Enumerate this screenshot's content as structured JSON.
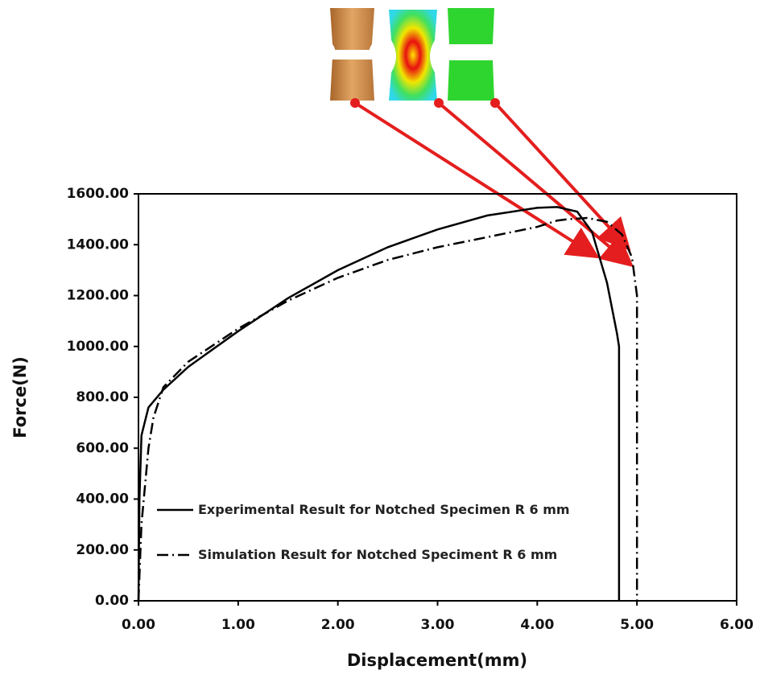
{
  "chart_data": {
    "type": "line",
    "x_label": "Displacement(mm)",
    "y_label": "Force(N)",
    "xlim": [
      0,
      6
    ],
    "ylim": [
      0,
      1600
    ],
    "xticks": [
      {
        "value": 0,
        "label": "0.00"
      },
      {
        "value": 1,
        "label": "1.00"
      },
      {
        "value": 2,
        "label": "2.00"
      },
      {
        "value": 3,
        "label": "3.00"
      },
      {
        "value": 4,
        "label": "4.00"
      },
      {
        "value": 5,
        "label": "5.00"
      },
      {
        "value": 6,
        "label": "6.00"
      }
    ],
    "yticks": [
      {
        "value": 0,
        "label": "0.00"
      },
      {
        "value": 200,
        "label": "200.00"
      },
      {
        "value": 400,
        "label": "400.00"
      },
      {
        "value": 600,
        "label": "600.00"
      },
      {
        "value": 800,
        "label": "800.00"
      },
      {
        "value": 1000,
        "label": "1000.00"
      },
      {
        "value": 1200,
        "label": "1200.00"
      },
      {
        "value": 1400,
        "label": "1400.00"
      },
      {
        "value": 1600,
        "label": "1600.00"
      }
    ],
    "series": [
      {
        "name": "Experimental Result for Notched Specimen R 6 mm",
        "color": "#000000",
        "style": "solid",
        "x": [
          0,
          0.01,
          0.03,
          0.1,
          0.25,
          0.5,
          1,
          1.5,
          2,
          2.5,
          3,
          3.5,
          4,
          4.2,
          4.4,
          4.55,
          4.7,
          4.8,
          4.82,
          4.82
        ],
        "values": [
          0,
          400,
          650,
          760,
          830,
          920,
          1060,
          1190,
          1300,
          1390,
          1460,
          1515,
          1545,
          1548,
          1530,
          1450,
          1250,
          1050,
          1000,
          0
        ]
      },
      {
        "name": "Simulation Result for Notched Speciment R 6 mm",
        "color": "#000000",
        "style": "dash-dot",
        "x": [
          0,
          0.03,
          0.1,
          0.15,
          0.25,
          0.5,
          1,
          1.5,
          2,
          2.5,
          3,
          3.5,
          4,
          4.2,
          4.3,
          4.5,
          4.7,
          4.85,
          4.95,
          5,
          5
        ],
        "values": [
          0,
          300,
          600,
          720,
          840,
          940,
          1070,
          1180,
          1270,
          1340,
          1390,
          1430,
          1470,
          1495,
          1500,
          1505,
          1490,
          1440,
          1350,
          1200,
          0
        ]
      }
    ],
    "legend": "lower-left"
  }
}
